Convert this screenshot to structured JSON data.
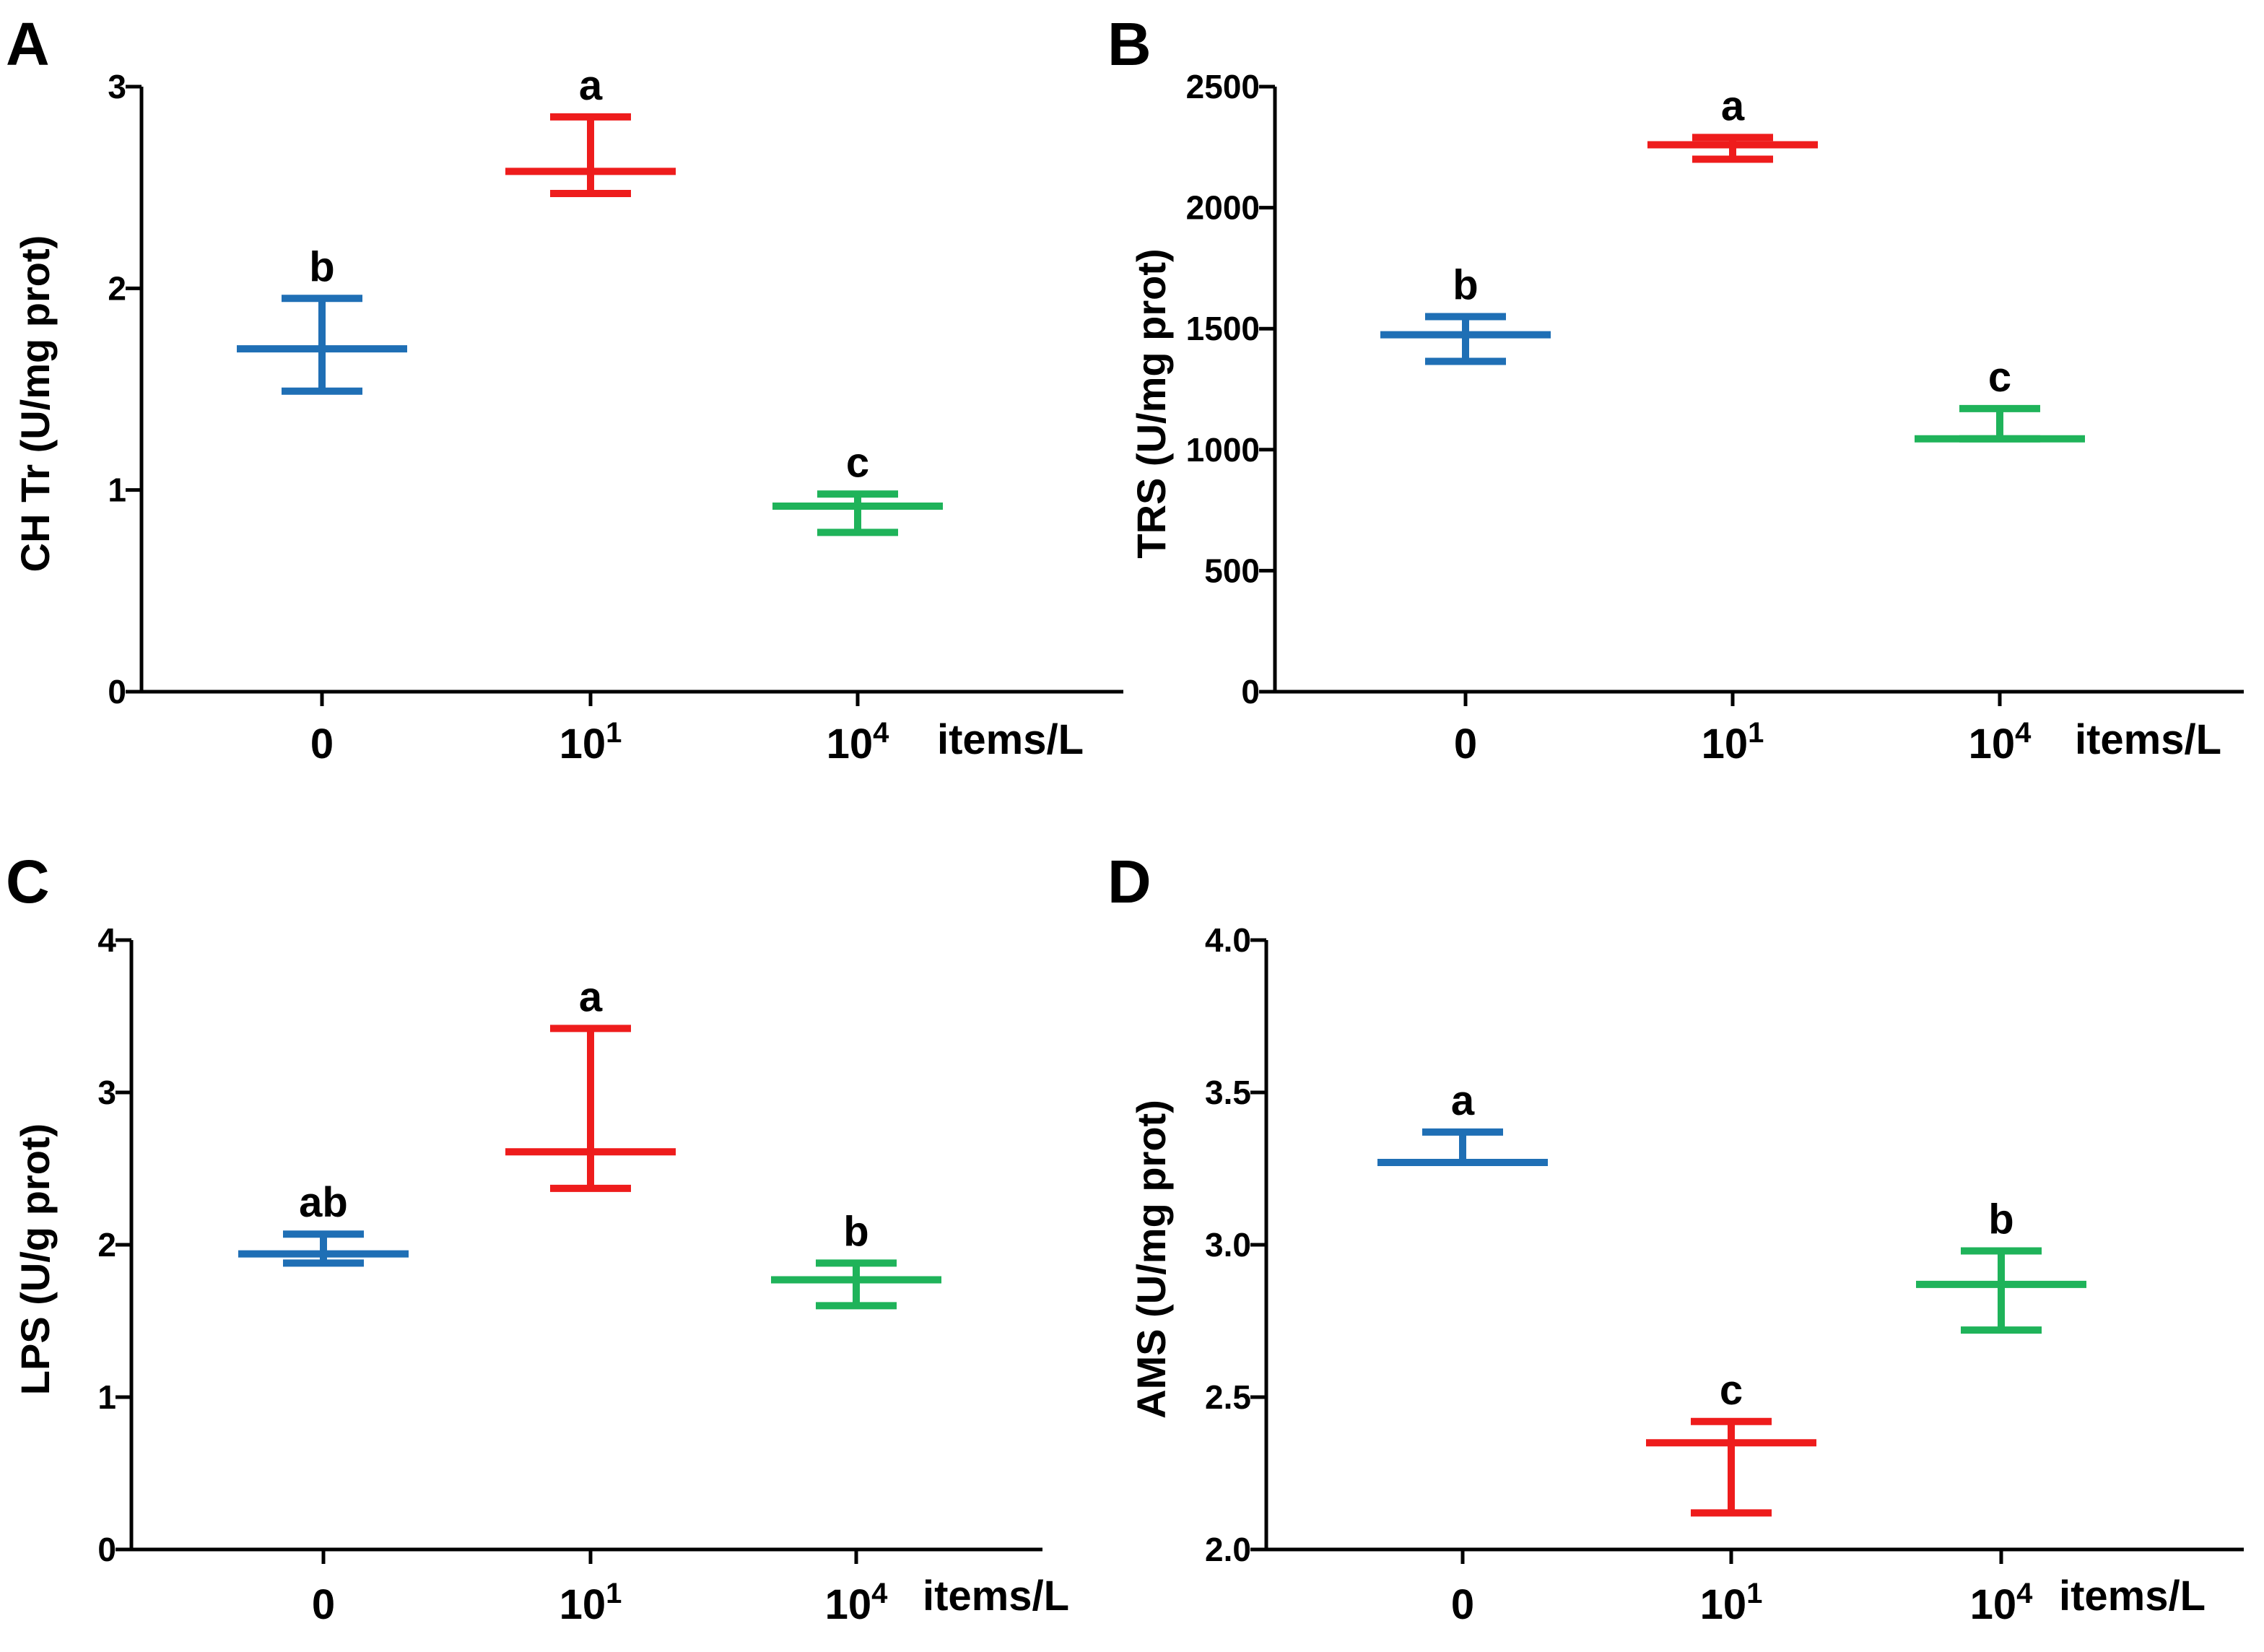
{
  "figure": {
    "unit_label": "items/L",
    "categories": [
      "0",
      "10",
      "10"
    ],
    "category_superscripts": [
      "",
      "1",
      "4"
    ],
    "series_colors": [
      "#1f6fb5",
      "#ee1c1c",
      "#1fb35a"
    ]
  },
  "chart_data": [
    {
      "type": "scatter",
      "panel": "A",
      "ylabel": "CH Tr (U/mg prot)",
      "xlabel": "items/L",
      "ylim": [
        0,
        3
      ],
      "yticks": [
        "0",
        "1",
        "2",
        "3"
      ],
      "categories": [
        "0",
        "10¹",
        "10⁴"
      ],
      "means": [
        1.7,
        2.58,
        0.92
      ],
      "upper": [
        1.95,
        2.85,
        0.98
      ],
      "lower": [
        1.49,
        2.47,
        0.79
      ],
      "letters": [
        "b",
        "a",
        "c"
      ]
    },
    {
      "type": "scatter",
      "panel": "B",
      "ylabel": "TRS (U/mg prot)",
      "xlabel": "items/L",
      "ylim": [
        0,
        2500
      ],
      "yticks": [
        "0",
        "500",
        "1000",
        "1500",
        "2000",
        "2500"
      ],
      "categories": [
        "0",
        "10¹",
        "10⁴"
      ],
      "means": [
        1475,
        2260,
        1045
      ],
      "upper": [
        1550,
        2290,
        1170
      ],
      "lower": [
        1365,
        2200,
        1045
      ],
      "letters": [
        "b",
        "a",
        "c"
      ]
    },
    {
      "type": "scatter",
      "panel": "C",
      "ylabel": "LPS (U/g prot)",
      "xlabel": "items/L",
      "ylim": [
        0,
        4
      ],
      "yticks": [
        "0",
        "1",
        "2",
        "3",
        "4"
      ],
      "categories": [
        "0",
        "10¹",
        "10⁴"
      ],
      "means": [
        1.94,
        2.61,
        1.77
      ],
      "upper": [
        2.07,
        3.42,
        1.88
      ],
      "lower": [
        1.88,
        2.37,
        1.6
      ],
      "letters": [
        "ab",
        "a",
        "b"
      ]
    },
    {
      "type": "scatter",
      "panel": "D",
      "ylabel": "AMS (U/mg prot)",
      "xlabel": "items/L",
      "ylim": [
        2.0,
        4.0
      ],
      "yticks": [
        "2.0",
        "2.5",
        "3.0",
        "3.5",
        "4.0"
      ],
      "categories": [
        "0",
        "10¹",
        "10⁴"
      ],
      "means": [
        3.27,
        2.35,
        2.87
      ],
      "upper": [
        3.37,
        2.42,
        2.98
      ],
      "lower": [
        3.27,
        2.12,
        2.72
      ],
      "letters": [
        "a",
        "c",
        "b"
      ]
    }
  ]
}
